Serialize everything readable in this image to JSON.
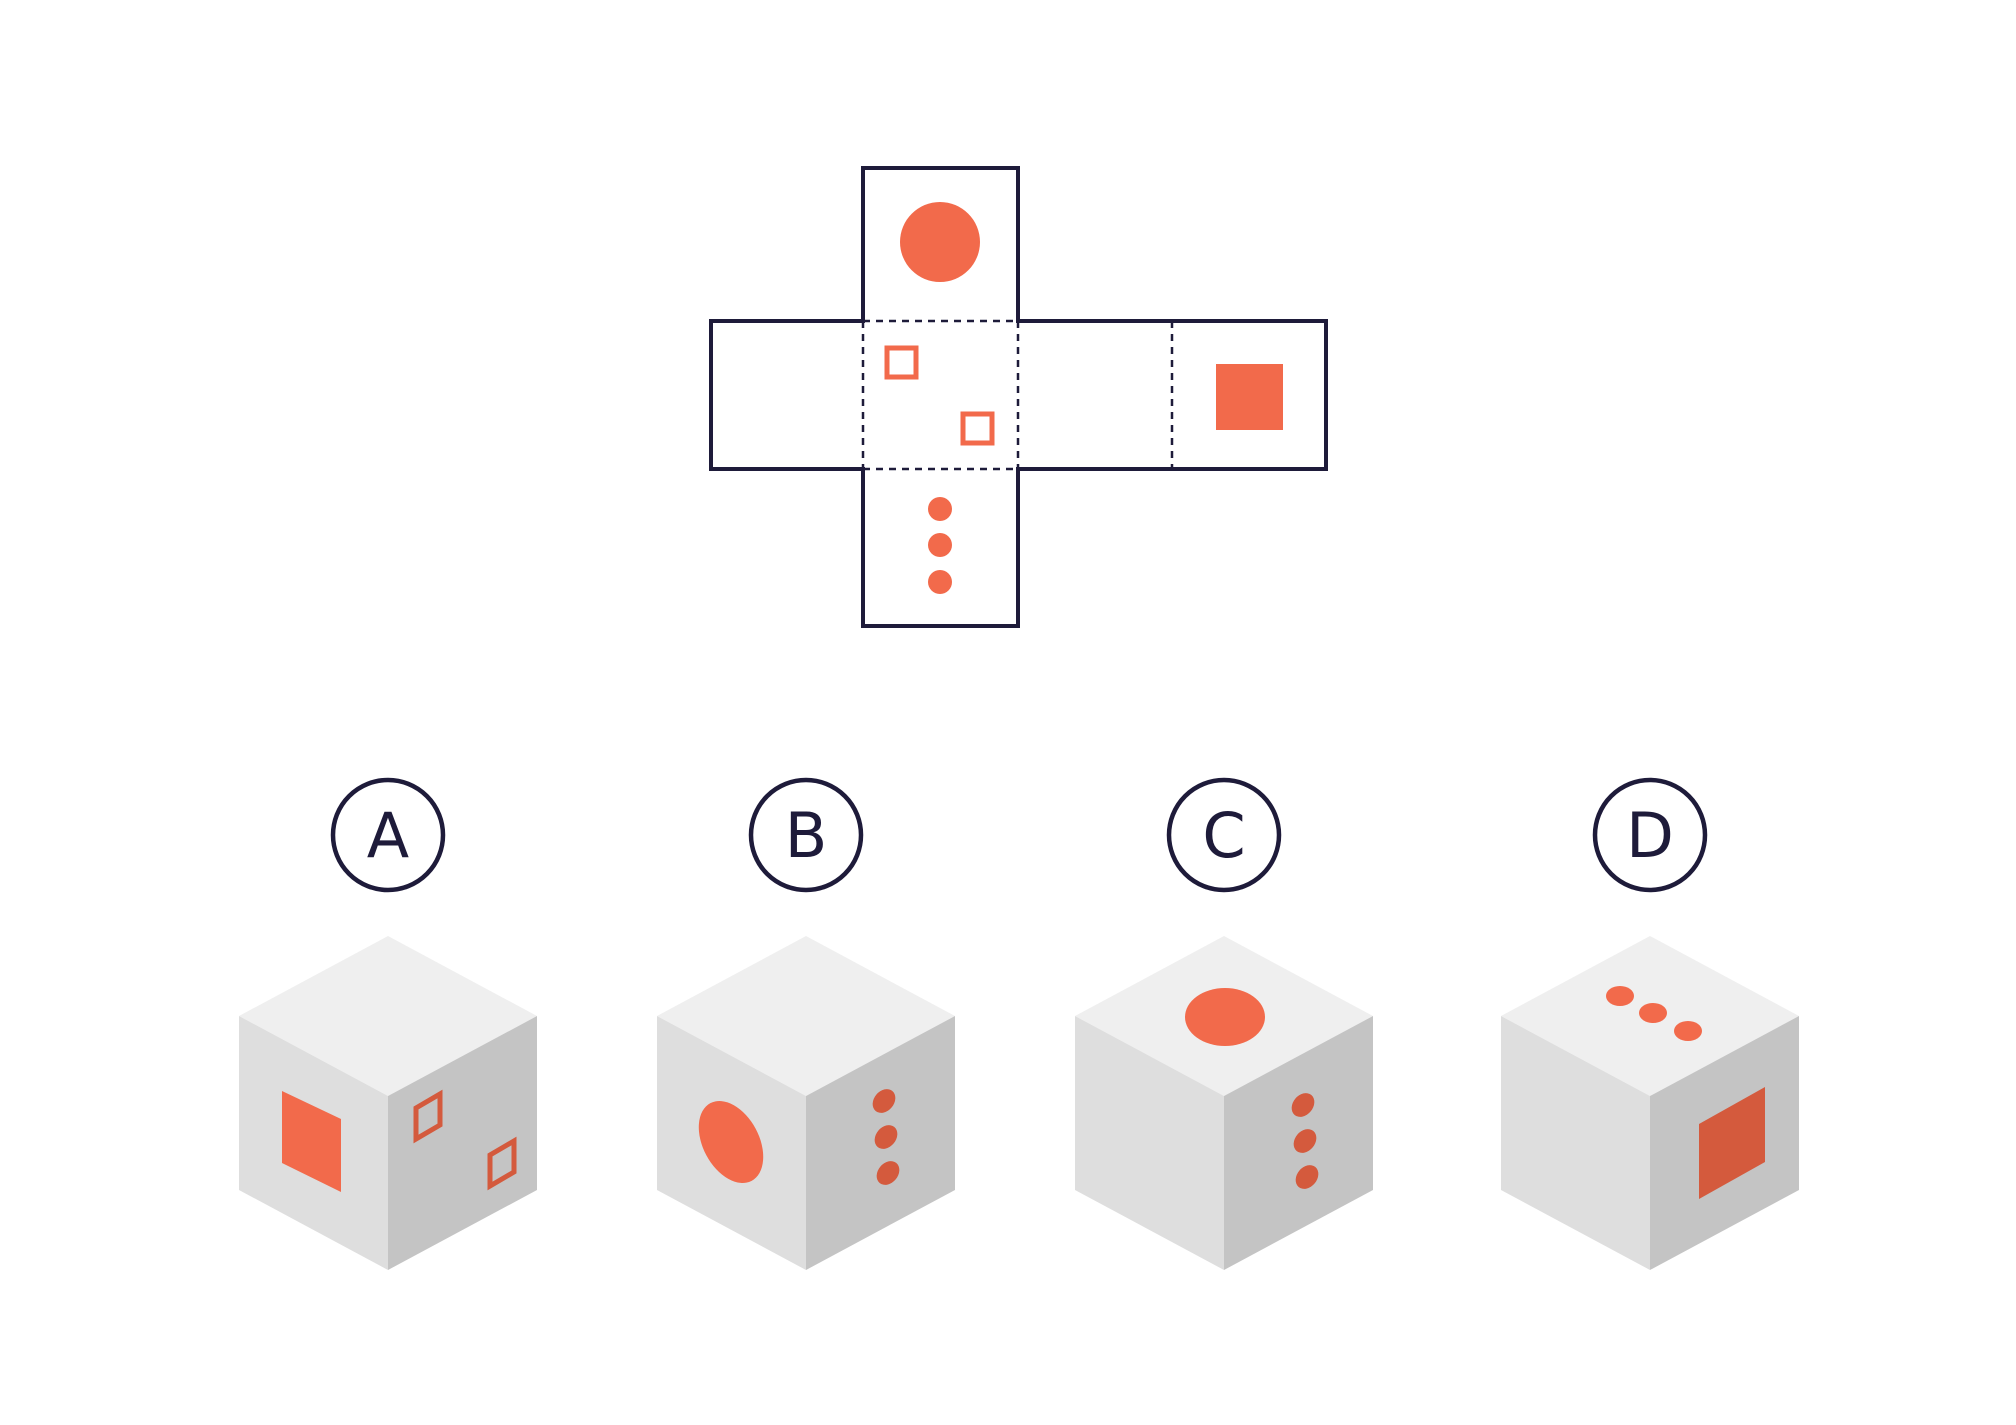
{
  "puzzle": {
    "net": {
      "faces": [
        {
          "id": "top",
          "mark": "filled-circle"
        },
        {
          "id": "left",
          "mark": "none"
        },
        {
          "id": "center",
          "mark": "two-hollow-squares"
        },
        {
          "id": "right",
          "mark": "none"
        },
        {
          "id": "far-right",
          "mark": "filled-square"
        },
        {
          "id": "bottom",
          "mark": "three-dots"
        }
      ]
    },
    "options": [
      {
        "letter": "A",
        "top": "none",
        "left": "filled-square",
        "right": "two-hollow-squares"
      },
      {
        "letter": "B",
        "top": "none",
        "left": "filled-circle",
        "right": "three-dots"
      },
      {
        "letter": "C",
        "top": "filled-circle",
        "left": "none",
        "right": "three-dots"
      },
      {
        "letter": "D",
        "top": "three-dots",
        "left": "none",
        "right": "filled-square"
      }
    ]
  },
  "colors": {
    "outline": "#1e1b3a",
    "accent": "#f26a4b",
    "accent_dark": "#d45a3d",
    "cube_top": "#efefef",
    "cube_left": "#dedede",
    "cube_right": "#c4c4c4",
    "background": "#ffffff"
  }
}
